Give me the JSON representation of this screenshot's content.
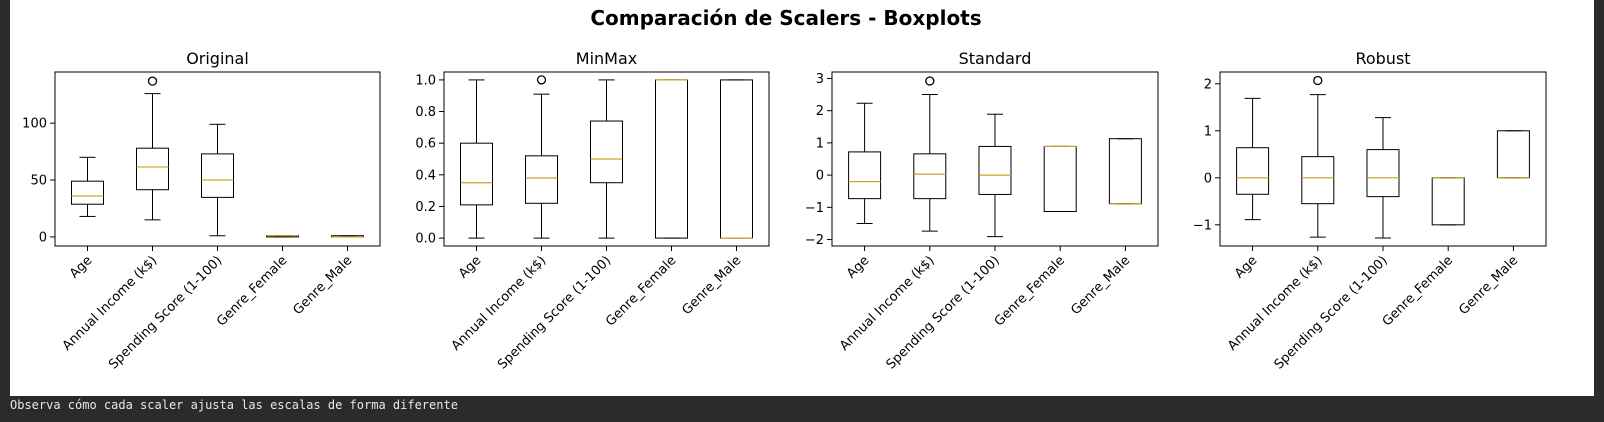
{
  "figure": {
    "suptitle": "Comparación de Scalers - Boxplots"
  },
  "status_text": "Observa cómo cada scaler ajusta las escalas de forma diferente",
  "colors": {
    "box": "#000000",
    "median": "#c9a227",
    "background": "#ffffff",
    "frame": "#2b2b2b"
  },
  "chart_data": [
    {
      "type": "boxplot",
      "title": "Original",
      "categories": [
        "Age",
        "Annual Income (k$)",
        "Spending Score (1-100)",
        "Genre_Female",
        "Genre_Male"
      ],
      "ylim": [
        -8,
        145
      ],
      "yticks": [
        0,
        50,
        100
      ],
      "boxes": [
        {
          "whislo": 18,
          "q1": 28.75,
          "med": 36,
          "q3": 49,
          "whishi": 70,
          "fliers": []
        },
        {
          "whislo": 15,
          "q1": 41.5,
          "med": 61.5,
          "q3": 78,
          "whishi": 126,
          "fliers": [
            137
          ]
        },
        {
          "whislo": 1,
          "q1": 34.75,
          "med": 50,
          "q3": 73,
          "whishi": 99,
          "fliers": []
        },
        {
          "whislo": 0,
          "q1": 0,
          "med": 1,
          "q3": 1,
          "whishi": 1,
          "fliers": []
        },
        {
          "whislo": 0,
          "q1": 0,
          "med": 0,
          "q3": 1,
          "whishi": 1,
          "fliers": []
        }
      ]
    },
    {
      "type": "boxplot",
      "title": "MinMax",
      "categories": [
        "Age",
        "Annual Income (k$)",
        "Spending Score (1-100)",
        "Genre_Female",
        "Genre_Male"
      ],
      "ylim": [
        -0.05,
        1.05
      ],
      "yticks": [
        0.0,
        0.2,
        0.4,
        0.6,
        0.8,
        1.0
      ],
      "ytick_labels": [
        "0.0",
        "0.2",
        "0.4",
        "0.6",
        "0.8",
        "1.0"
      ],
      "boxes": [
        {
          "whislo": 0,
          "q1": 0.21,
          "med": 0.35,
          "q3": 0.6,
          "whishi": 1,
          "fliers": []
        },
        {
          "whislo": 0,
          "q1": 0.22,
          "med": 0.38,
          "q3": 0.52,
          "whishi": 0.91,
          "fliers": [
            1.0
          ]
        },
        {
          "whislo": 0,
          "q1": 0.35,
          "med": 0.5,
          "q3": 0.74,
          "whishi": 1,
          "fliers": []
        },
        {
          "whislo": 0,
          "q1": 0,
          "med": 1,
          "q3": 1,
          "whishi": 1,
          "fliers": []
        },
        {
          "whislo": 0,
          "q1": 0,
          "med": 0,
          "q3": 1,
          "whishi": 1,
          "fliers": []
        }
      ]
    },
    {
      "type": "boxplot",
      "title": "Standard",
      "categories": [
        "Age",
        "Annual Income (k$)",
        "Spending Score (1-100)",
        "Genre_Female",
        "Genre_Male"
      ],
      "ylim": [
        -2.2,
        3.2
      ],
      "yticks": [
        -2,
        -1,
        0,
        1,
        2,
        3
      ],
      "ytick_labels": [
        "−2",
        "−1",
        "0",
        "1",
        "2",
        "3"
      ],
      "boxes": [
        {
          "whislo": -1.5,
          "q1": -0.73,
          "med": -0.2,
          "q3": 0.72,
          "whishi": 2.23,
          "fliers": []
        },
        {
          "whislo": -1.74,
          "q1": -0.73,
          "med": 0.03,
          "q3": 0.66,
          "whishi": 2.5,
          "fliers": [
            2.92
          ]
        },
        {
          "whislo": -1.91,
          "q1": -0.6,
          "med": 0.0,
          "q3": 0.89,
          "whishi": 1.89,
          "fliers": []
        },
        {
          "whislo": -1.13,
          "q1": -1.13,
          "med": 0.89,
          "q3": 0.89,
          "whishi": 0.89,
          "fliers": []
        },
        {
          "whislo": -0.89,
          "q1": -0.89,
          "med": -0.89,
          "q3": 1.13,
          "whishi": 1.13,
          "fliers": []
        }
      ]
    },
    {
      "type": "boxplot",
      "title": "Robust",
      "categories": [
        "Age",
        "Annual Income (k$)",
        "Spending Score (1-100)",
        "Genre_Female",
        "Genre_Male"
      ],
      "ylim": [
        -1.45,
        2.25
      ],
      "yticks": [
        -1,
        0,
        1,
        2
      ],
      "ytick_labels": [
        "−1",
        "0",
        "1",
        "2"
      ],
      "boxes": [
        {
          "whislo": -0.89,
          "q1": -0.35,
          "med": 0,
          "q3": 0.64,
          "whishi": 1.69,
          "fliers": []
        },
        {
          "whislo": -1.26,
          "q1": -0.55,
          "med": 0,
          "q3": 0.45,
          "whishi": 1.77,
          "fliers": [
            2.07
          ]
        },
        {
          "whislo": -1.28,
          "q1": -0.4,
          "med": 0,
          "q3": 0.6,
          "whishi": 1.28,
          "fliers": []
        },
        {
          "whislo": -1,
          "q1": -1,
          "med": 0,
          "q3": 0,
          "whishi": 0,
          "fliers": []
        },
        {
          "whislo": 0,
          "q1": 0,
          "med": 0,
          "q3": 1,
          "whishi": 1,
          "fliers": []
        }
      ]
    }
  ]
}
